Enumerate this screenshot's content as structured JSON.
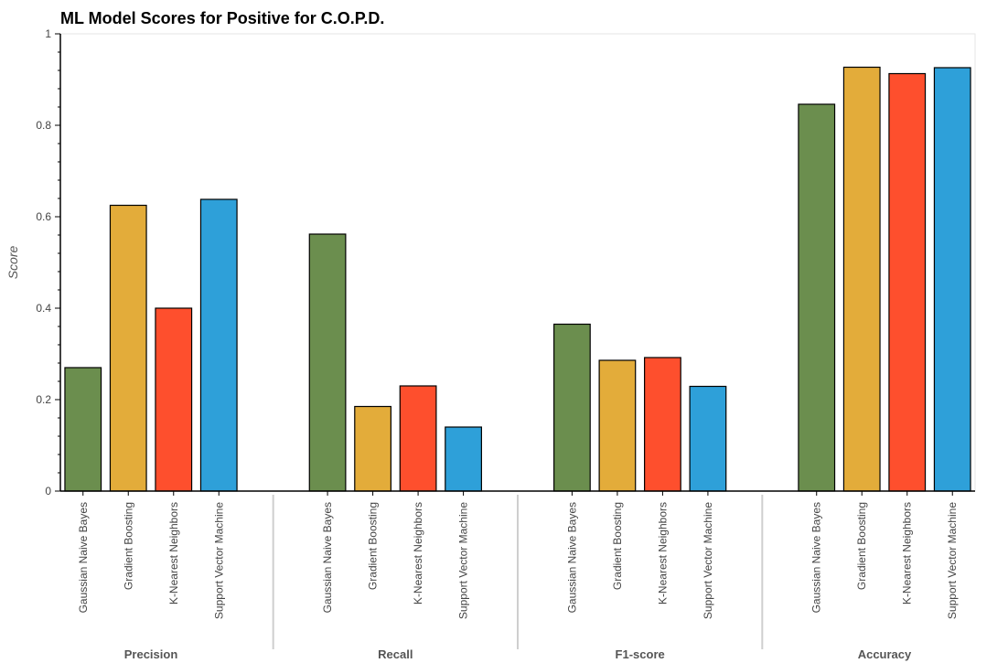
{
  "chart_data": {
    "type": "bar",
    "title": "ML Model Scores for Positive for C.O.P.D.",
    "ylabel": "Score",
    "xlabel": "",
    "ylim": [
      0,
      1
    ],
    "yticks": [
      {
        "value": 0,
        "label": "0"
      },
      {
        "value": 0.2,
        "label": "0.2"
      },
      {
        "value": 0.4,
        "label": "0.4"
      },
      {
        "value": 0.6,
        "label": "0.6"
      },
      {
        "value": 0.8,
        "label": "0.8"
      },
      {
        "value": 1,
        "label": "1"
      }
    ],
    "groups": [
      "Precision",
      "Recall",
      "F1-score",
      "Accuracy"
    ],
    "models": [
      "Gaussian Naive Bayes",
      "Gradient Boosting",
      "K-Nearest Neighbors",
      "Support Vector Machine"
    ],
    "colors": [
      "#6b8e4e",
      "#e3ac3a",
      "#fe4f2d",
      "#2ea0d9"
    ],
    "values": [
      [
        0.27,
        0.625,
        0.4,
        0.638
      ],
      [
        0.562,
        0.185,
        0.23,
        0.14
      ],
      [
        0.365,
        0.286,
        0.292,
        0.229
      ],
      [
        0.846,
        0.927,
        0.913,
        0.926
      ]
    ],
    "grid": false,
    "legend": "none"
  }
}
